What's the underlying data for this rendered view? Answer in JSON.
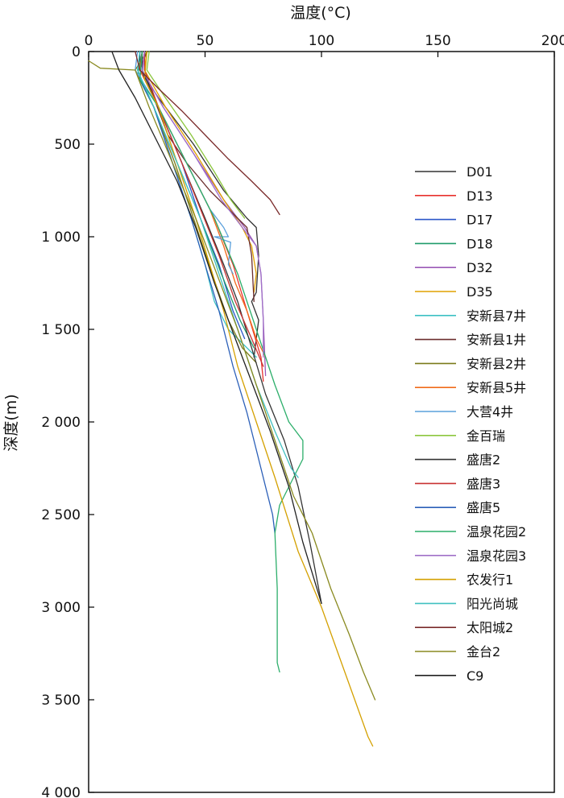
{
  "chart_data": {
    "type": "line",
    "xlabel": "温度(°C)",
    "ylabel": "深度(m)",
    "xlim": [
      0,
      200
    ],
    "ylim": [
      0,
      4000
    ],
    "x_axis_position": "top",
    "y_axis_inverted": true,
    "grid": false,
    "legend_position": "right",
    "x_ticks": [
      {
        "value": 0,
        "label": "0"
      },
      {
        "value": 50,
        "label": "50"
      },
      {
        "value": 100,
        "label": "100"
      },
      {
        "value": 150,
        "label": "150"
      },
      {
        "value": 200,
        "label": "200"
      }
    ],
    "y_ticks": [
      {
        "value": 0,
        "label": "0"
      },
      {
        "value": 500,
        "label": "500"
      },
      {
        "value": 1000,
        "label": "1 000"
      },
      {
        "value": 1500,
        "label": "1 500"
      },
      {
        "value": 2000,
        "label": "2 000"
      },
      {
        "value": 2500,
        "label": "2 500"
      },
      {
        "value": 3000,
        "label": "3 000"
      },
      {
        "value": 3500,
        "label": "3 500"
      },
      {
        "value": 4000,
        "label": "4 000"
      }
    ],
    "series": [
      {
        "name": "D01",
        "color": "#333333",
        "points": [
          [
            22,
            0
          ],
          [
            22,
            100
          ],
          [
            30,
            250
          ],
          [
            45,
            500
          ],
          [
            58,
            750
          ],
          [
            68,
            900
          ],
          [
            72,
            950
          ],
          [
            73,
            1100
          ],
          [
            72,
            1300
          ],
          [
            70,
            1350
          ],
          [
            73,
            1450
          ],
          [
            71,
            1650
          ]
        ]
      },
      {
        "name": "D13",
        "color": "#e8322d",
        "points": [
          [
            23,
            0
          ],
          [
            22,
            100
          ],
          [
            30,
            300
          ],
          [
            42,
            600
          ],
          [
            54,
            900
          ],
          [
            62,
            1150
          ],
          [
            68,
            1400
          ],
          [
            74,
            1650
          ],
          [
            75,
            1780
          ]
        ]
      },
      {
        "name": "D17",
        "color": "#2b56c8",
        "points": [
          [
            24,
            0
          ],
          [
            23,
            120
          ],
          [
            30,
            300
          ],
          [
            40,
            600
          ],
          [
            48,
            900
          ],
          [
            56,
            1150
          ],
          [
            62,
            1400
          ],
          [
            67,
            1550
          ]
        ]
      },
      {
        "name": "D18",
        "color": "#1f9b6a",
        "points": [
          [
            23,
            0
          ],
          [
            21,
            130
          ],
          [
            28,
            300
          ],
          [
            38,
            600
          ],
          [
            48,
            900
          ],
          [
            57,
            1200
          ],
          [
            65,
            1450
          ],
          [
            71,
            1600
          ]
        ]
      },
      {
        "name": "D32",
        "color": "#9b59b6",
        "points": [
          [
            24,
            0
          ],
          [
            23,
            100
          ],
          [
            32,
            300
          ],
          [
            45,
            550
          ],
          [
            58,
            800
          ],
          [
            67,
            950
          ],
          [
            72,
            1050
          ],
          [
            74,
            1200
          ],
          [
            75,
            1450
          ],
          [
            76,
            1750
          ]
        ]
      },
      {
        "name": "D35",
        "color": "#e0a000",
        "points": [
          [
            25,
            0
          ],
          [
            24,
            100
          ],
          [
            33,
            300
          ],
          [
            46,
            550
          ],
          [
            58,
            800
          ],
          [
            66,
            950
          ],
          [
            70,
            1050
          ],
          [
            72,
            1200
          ],
          [
            71,
            1300
          ]
        ]
      },
      {
        "name": "安新县7井",
        "color": "#3cc0c4",
        "points": [
          [
            22,
            0
          ],
          [
            21,
            100
          ],
          [
            28,
            300
          ],
          [
            36,
            600
          ],
          [
            44,
            900
          ],
          [
            50,
            1150
          ],
          [
            54,
            1350
          ],
          [
            60,
            1500
          ],
          [
            68,
            1600
          ],
          [
            72,
            1650
          ]
        ]
      },
      {
        "name": "安新县1井",
        "color": "#6b2d2d",
        "points": [
          [
            25,
            0
          ],
          [
            22,
            100
          ],
          [
            28,
            250
          ],
          [
            34,
            450
          ],
          [
            42,
            600
          ],
          [
            52,
            750
          ],
          [
            60,
            850
          ],
          [
            68,
            950
          ],
          [
            70,
            1100
          ],
          [
            71,
            1350
          ]
        ]
      },
      {
        "name": "安新县2井",
        "color": "#7a7a1a",
        "points": [
          [
            25,
            0
          ],
          [
            20,
            100
          ],
          [
            28,
            300
          ],
          [
            37,
            600
          ],
          [
            45,
            900
          ],
          [
            53,
            1200
          ],
          [
            60,
            1450
          ],
          [
            66,
            1600
          ],
          [
            72,
            1680
          ]
        ]
      },
      {
        "name": "安新县5井",
        "color": "#f06a1a",
        "points": [
          [
            23,
            0
          ],
          [
            22,
            100
          ],
          [
            30,
            300
          ],
          [
            42,
            600
          ],
          [
            52,
            850
          ],
          [
            58,
            1050
          ],
          [
            63,
            1250
          ],
          [
            68,
            1400
          ],
          [
            72,
            1550
          ],
          [
            76,
            1650
          ]
        ]
      },
      {
        "name": "大营4井",
        "color": "#5aa0dc",
        "points": [
          [
            21,
            0
          ],
          [
            20,
            100
          ],
          [
            30,
            300
          ],
          [
            42,
            600
          ],
          [
            52,
            850
          ],
          [
            58,
            950
          ],
          [
            60,
            1000
          ],
          [
            54,
            1000
          ],
          [
            61,
            1030
          ],
          [
            60,
            1150
          ],
          [
            62,
            1200
          ]
        ]
      },
      {
        "name": "金百瑞",
        "color": "#8cc63e",
        "points": [
          [
            26,
            0
          ],
          [
            25,
            100
          ],
          [
            33,
            250
          ],
          [
            44,
            450
          ],
          [
            54,
            650
          ],
          [
            61,
            800
          ],
          [
            67,
            900
          ]
        ]
      },
      {
        "name": "盛唐2",
        "color": "#333333",
        "points": [
          [
            23,
            0
          ],
          [
            23,
            100
          ],
          [
            30,
            300
          ],
          [
            40,
            600
          ],
          [
            50,
            900
          ],
          [
            58,
            1150
          ],
          [
            64,
            1350
          ],
          [
            70,
            1600
          ],
          [
            76,
            1850
          ],
          [
            84,
            2100
          ],
          [
            90,
            2350
          ],
          [
            95,
            2650
          ],
          [
            100,
            2980
          ]
        ]
      },
      {
        "name": "盛唐3",
        "color": "#c83232",
        "points": [
          [
            24,
            0
          ],
          [
            24,
            100
          ],
          [
            30,
            300
          ],
          [
            40,
            600
          ],
          [
            48,
            850
          ],
          [
            56,
            1100
          ],
          [
            63,
            1350
          ],
          [
            70,
            1550
          ],
          [
            75,
            1700
          ]
        ]
      },
      {
        "name": "盛唐5",
        "color": "#2b5fb8",
        "points": [
          [
            23,
            0
          ],
          [
            22,
            150
          ],
          [
            28,
            300
          ],
          [
            36,
            600
          ],
          [
            44,
            900
          ],
          [
            50,
            1150
          ],
          [
            56,
            1400
          ],
          [
            62,
            1700
          ],
          [
            68,
            1950
          ],
          [
            72,
            2150
          ],
          [
            76,
            2350
          ],
          [
            79,
            2500
          ],
          [
            80,
            2600
          ]
        ]
      },
      {
        "name": "温泉花园2",
        "color": "#2cae6a",
        "points": [
          [
            23,
            0
          ],
          [
            22,
            150
          ],
          [
            30,
            300
          ],
          [
            42,
            600
          ],
          [
            54,
            900
          ],
          [
            64,
            1200
          ],
          [
            72,
            1500
          ],
          [
            80,
            1800
          ],
          [
            86,
            2000
          ],
          [
            92,
            2100
          ],
          [
            92,
            2200
          ],
          [
            88,
            2300
          ],
          [
            82,
            2450
          ],
          [
            80,
            2600
          ],
          [
            81,
            2900
          ],
          [
            81,
            3100
          ],
          [
            81,
            3300
          ],
          [
            82,
            3350
          ]
        ]
      },
      {
        "name": "温泉花园3",
        "color": "#a070c8",
        "points": [
          [
            24,
            0
          ],
          [
            23,
            100
          ],
          [
            32,
            300
          ],
          [
            45,
            550
          ],
          [
            57,
            800
          ],
          [
            66,
            950
          ],
          [
            72,
            1050
          ],
          [
            74,
            1200
          ],
          [
            75,
            1450
          ],
          [
            75,
            1650
          ]
        ]
      },
      {
        "name": "农发行1",
        "color": "#d4a000",
        "points": [
          [
            25,
            0
          ],
          [
            24,
            150
          ],
          [
            30,
            300
          ],
          [
            38,
            600
          ],
          [
            46,
            900
          ],
          [
            52,
            1150
          ],
          [
            58,
            1400
          ],
          [
            64,
            1700
          ],
          [
            72,
            2000
          ],
          [
            80,
            2300
          ],
          [
            90,
            2700
          ],
          [
            100,
            3000
          ],
          [
            110,
            3350
          ],
          [
            120,
            3700
          ],
          [
            122,
            3750
          ]
        ]
      },
      {
        "name": "阳光尚城",
        "color": "#40c0c0",
        "points": [
          [
            22,
            0
          ],
          [
            21,
            100
          ],
          [
            28,
            300
          ],
          [
            38,
            600
          ],
          [
            48,
            900
          ],
          [
            56,
            1200
          ],
          [
            64,
            1500
          ],
          [
            72,
            1800
          ],
          [
            80,
            2050
          ],
          [
            87,
            2250
          ],
          [
            90,
            2300
          ]
        ]
      },
      {
        "name": "太阳城2",
        "color": "#7a2a2a",
        "points": [
          [
            20,
            0
          ],
          [
            22,
            100
          ],
          [
            30,
            200
          ],
          [
            40,
            320
          ],
          [
            50,
            450
          ],
          [
            60,
            580
          ],
          [
            70,
            700
          ],
          [
            78,
            800
          ],
          [
            82,
            880
          ]
        ]
      },
      {
        "name": "金台2",
        "color": "#8a8a20",
        "points": [
          [
            0,
            50
          ],
          [
            5,
            90
          ],
          [
            20,
            100
          ],
          [
            26,
            300
          ],
          [
            36,
            600
          ],
          [
            46,
            900
          ],
          [
            55,
            1200
          ],
          [
            64,
            1500
          ],
          [
            72,
            1800
          ],
          [
            80,
            2100
          ],
          [
            88,
            2400
          ],
          [
            96,
            2600
          ],
          [
            104,
            2900
          ],
          [
            112,
            3150
          ],
          [
            118,
            3350
          ],
          [
            123,
            3500
          ]
        ]
      },
      {
        "name": "C9",
        "color": "#222222",
        "points": [
          [
            10,
            0
          ],
          [
            13,
            100
          ],
          [
            20,
            250
          ],
          [
            30,
            500
          ],
          [
            38,
            700
          ],
          [
            46,
            950
          ],
          [
            54,
            1250
          ],
          [
            60,
            1450
          ],
          [
            66,
            1650
          ],
          [
            72,
            1850
          ],
          [
            78,
            2050
          ],
          [
            86,
            2350
          ],
          [
            92,
            2650
          ],
          [
            100,
            2980
          ]
        ]
      }
    ]
  }
}
